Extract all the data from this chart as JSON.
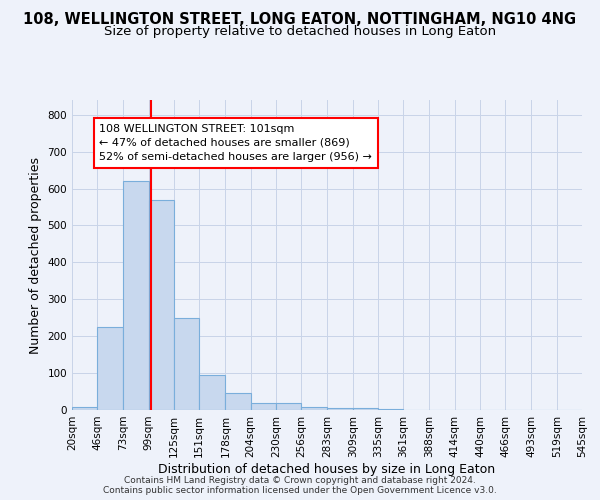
{
  "title": "108, WELLINGTON STREET, LONG EATON, NOTTINGHAM, NG10 4NG",
  "subtitle": "Size of property relative to detached houses in Long Eaton",
  "xlabel": "Distribution of detached houses by size in Long Eaton",
  "ylabel": "Number of detached properties",
  "footer_line1": "Contains HM Land Registry data © Crown copyright and database right 2024.",
  "footer_line2": "Contains public sector information licensed under the Open Government Licence v3.0.",
  "bin_labels": [
    "20sqm",
    "46sqm",
    "73sqm",
    "99sqm",
    "125sqm",
    "151sqm",
    "178sqm",
    "204sqm",
    "230sqm",
    "256sqm",
    "283sqm",
    "309sqm",
    "335sqm",
    "361sqm",
    "388sqm",
    "414sqm",
    "440sqm",
    "466sqm",
    "493sqm",
    "519sqm",
    "545sqm"
  ],
  "bar_values": [
    8,
    225,
    620,
    570,
    250,
    95,
    45,
    20,
    20,
    8,
    5,
    5,
    2,
    0,
    0,
    0,
    0,
    0,
    0,
    0
  ],
  "bar_color": "#c8d8ee",
  "bar_edge_color": "#7aaedb",
  "grid_color": "#c8d4e8",
  "background_color": "#eef2fa",
  "red_line_x": 101,
  "annotation_text": "108 WELLINGTON STREET: 101sqm\n← 47% of detached houses are smaller (869)\n52% of semi-detached houses are larger (956) →",
  "annotation_box_color": "white",
  "annotation_edge_color": "red",
  "ylim": [
    0,
    840
  ],
  "yticks": [
    0,
    100,
    200,
    300,
    400,
    500,
    600,
    700,
    800
  ],
  "title_fontsize": 10.5,
  "subtitle_fontsize": 9.5,
  "axis_label_fontsize": 9,
  "tick_fontsize": 7.5,
  "annotation_fontsize": 8,
  "footer_fontsize": 6.5
}
